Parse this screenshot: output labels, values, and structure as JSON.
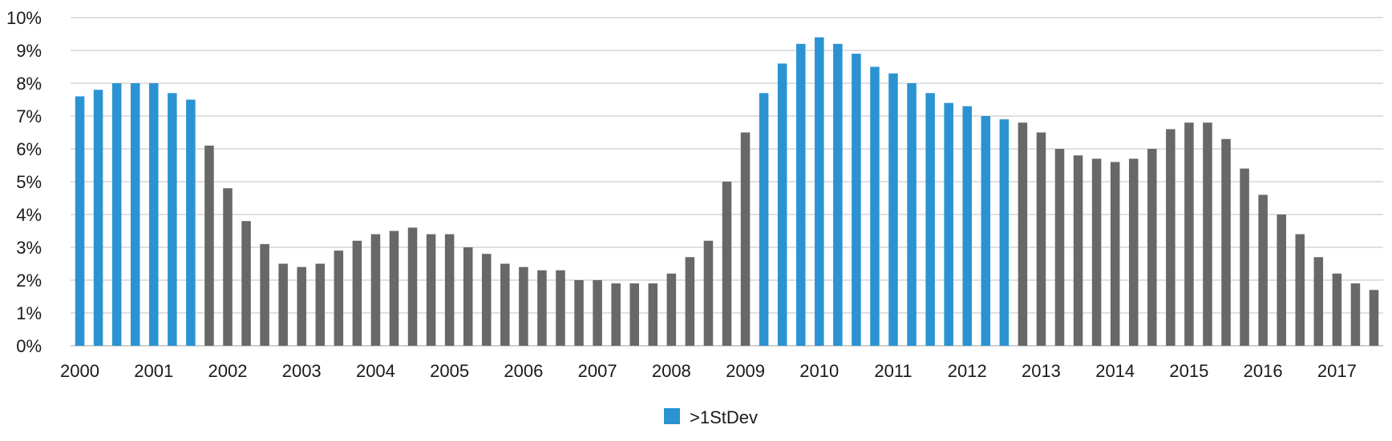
{
  "chart_data": {
    "type": "bar",
    "title": "",
    "xlabel": "",
    "ylabel": "",
    "ylim": [
      0,
      10
    ],
    "y_ticks": [
      {
        "value": 0,
        "label": "0%"
      },
      {
        "value": 1,
        "label": "1%"
      },
      {
        "value": 2,
        "label": "2%"
      },
      {
        "value": 3,
        "label": "3%"
      },
      {
        "value": 4,
        "label": "4%"
      },
      {
        "value": 5,
        "label": "5%"
      },
      {
        "value": 6,
        "label": "6%"
      },
      {
        "value": 7,
        "label": "7%"
      },
      {
        "value": 8,
        "label": "8%"
      },
      {
        "value": 9,
        "label": "9%"
      },
      {
        "value": 10,
        "label": "10%"
      }
    ],
    "x_tick_labels": [
      "2000",
      "2001",
      "2002",
      "2003",
      "2004",
      "2005",
      "2006",
      "2007",
      "2008",
      "2009",
      "2010",
      "2011",
      "2012",
      "2013",
      "2014",
      "2015",
      "2016",
      "2017"
    ],
    "x_tick_start_index": 0,
    "x_tick_every": 4,
    "values": [
      7.6,
      7.8,
      8.0,
      8.0,
      8.0,
      7.7,
      7.5,
      6.1,
      4.8,
      3.8,
      3.1,
      2.5,
      2.4,
      2.5,
      2.9,
      3.2,
      3.4,
      3.5,
      3.6,
      3.4,
      3.4,
      3.0,
      2.8,
      2.5,
      2.4,
      2.3,
      2.3,
      2.0,
      2.0,
      1.9,
      1.9,
      1.9,
      2.2,
      2.7,
      3.2,
      5.0,
      6.5,
      7.7,
      8.6,
      9.2,
      9.4,
      9.2,
      8.9,
      8.5,
      8.3,
      8.0,
      7.7,
      7.4,
      7.3,
      7.0,
      6.9,
      6.8,
      6.5,
      6.0,
      5.8,
      5.7,
      5.6,
      5.7,
      6.0,
      6.6,
      6.8,
      6.8,
      6.3,
      5.4,
      4.6,
      4.0,
      3.4,
      2.7,
      2.2,
      1.9,
      1.7
    ],
    "highlight": [
      true,
      true,
      true,
      true,
      true,
      true,
      true,
      false,
      false,
      false,
      false,
      false,
      false,
      false,
      false,
      false,
      false,
      false,
      false,
      false,
      false,
      false,
      false,
      false,
      false,
      false,
      false,
      false,
      false,
      false,
      false,
      false,
      false,
      false,
      false,
      false,
      false,
      true,
      true,
      true,
      true,
      true,
      true,
      true,
      true,
      true,
      true,
      true,
      true,
      true,
      true,
      false,
      false,
      false,
      false,
      false,
      false,
      false,
      false,
      false,
      false,
      false,
      false,
      false,
      false,
      false,
      false,
      false,
      false,
      false,
      false
    ],
    "colors": {
      "highlight": "#2b93d1",
      "normal": "#686868",
      "grid": "#d6d6d6"
    },
    "legend": {
      "position": "bottom",
      "entries": [
        {
          "label": ">1StDev",
          "color": "#2b93d1"
        }
      ]
    }
  }
}
